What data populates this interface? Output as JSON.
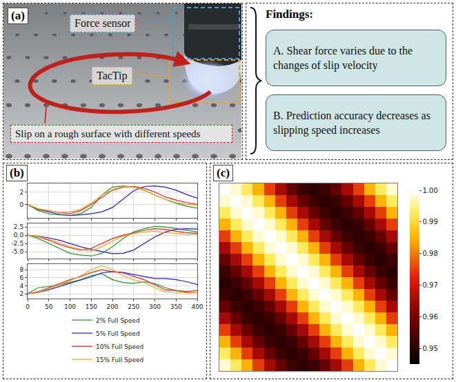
{
  "panel_a": {
    "label": "(a)",
    "force_sensor": "Force sensor",
    "tactip": "TacTip",
    "slip": "Slip on a rough surface with different speeds"
  },
  "findings": {
    "title": "Findings:",
    "items": [
      "A. Shear force varies due to the changes of slip velocity",
      "B. Prediction accuracy decreases as slipping speed increases"
    ]
  },
  "chart_data": [
    {
      "type": "line",
      "label": "(b)",
      "grid": true,
      "tick_labels": "y",
      "x": [
        0,
        25,
        50,
        75,
        100,
        125,
        150,
        175,
        200,
        225,
        250,
        275,
        300,
        325,
        350,
        375,
        400
      ],
      "xlim": [
        0,
        400
      ],
      "xticks": [
        0,
        50,
        100,
        150,
        200,
        250,
        300,
        350,
        400
      ],
      "ylim": [
        -2.2,
        3.4
      ],
      "yticks": [
        0,
        2
      ],
      "series": [
        {
          "name": "2% Full Speed",
          "color": "#1e9a1e",
          "values": [
            0,
            -1.0,
            -1.5,
            -1.7,
            -1.8,
            -1.5,
            -0.5,
            1.5,
            2.8,
            3.0,
            2.8,
            2.3,
            1.5,
            0.8,
            0.2,
            -0.3,
            -0.6
          ]
        },
        {
          "name": "5% Full Speed",
          "color": "#1f1fe0",
          "values": [
            0,
            -0.8,
            -1.2,
            -1.6,
            -1.8,
            -1.7,
            -1.5,
            -1.2,
            -0.5,
            0.8,
            2.2,
            2.9,
            3.0,
            2.8,
            2.3,
            1.6,
            1.0
          ]
        },
        {
          "name": "10% Full Speed",
          "color": "#e8231c",
          "values": [
            0,
            -0.8,
            -1.0,
            -1.3,
            -1.5,
            -1.0,
            0.0,
            1.2,
            2.3,
            2.8,
            2.9,
            2.6,
            2.0,
            1.2,
            0.7,
            0.3,
            0.0
          ]
        },
        {
          "name": "15% Full Speed",
          "color": "#f5a623",
          "values": [
            0,
            -0.7,
            -1.0,
            -1.3,
            -1.2,
            -0.8,
            0.2,
            1.5,
            2.4,
            2.9,
            2.8,
            2.3,
            1.5,
            0.8,
            0.3,
            0.0,
            -0.1
          ]
        }
      ]
    },
    {
      "type": "line",
      "grid": true,
      "tick_labels": "y",
      "x": [
        0,
        25,
        50,
        75,
        100,
        125,
        150,
        175,
        200,
        225,
        250,
        275,
        300,
        325,
        350,
        375,
        400
      ],
      "xlim": [
        0,
        400
      ],
      "xticks": [
        0,
        50,
        100,
        150,
        200,
        250,
        300,
        350,
        400
      ],
      "ylim": [
        -7,
        3.5
      ],
      "yticks": [
        {
          "value": -5,
          "label": "-5.0"
        },
        {
          "value": -2.5,
          "label": "-2.5"
        },
        {
          "value": 0,
          "label": "0.0"
        },
        {
          "value": 2.5,
          "label": "2.5"
        }
      ],
      "series": [
        {
          "name": "2% Full Speed",
          "color": "#1e9a1e",
          "values": [
            0,
            -1.0,
            -2.5,
            -4.0,
            -5.5,
            -6.0,
            -6.3,
            -5.5,
            -3.5,
            -1.0,
            1.0,
            2.0,
            2.7,
            2.5,
            2.0,
            1.5,
            1.0
          ]
        },
        {
          "name": "5% Full Speed",
          "color": "#1f1fe0",
          "values": [
            0,
            -0.3,
            -0.8,
            -1.5,
            -2.5,
            -3.5,
            -4.3,
            -5.0,
            -5.6,
            -5.5,
            -4.5,
            -2.5,
            -0.5,
            1.0,
            1.8,
            2.0,
            1.9
          ]
        },
        {
          "name": "10% Full Speed",
          "color": "#e8231c",
          "values": [
            0,
            -0.5,
            -1.5,
            -2.8,
            -3.8,
            -4.5,
            -4.0,
            -2.5,
            -1.0,
            0.0,
            0.8,
            1.5,
            2.0,
            1.8,
            1.2,
            0.8,
            0.6
          ]
        },
        {
          "name": "15% Full Speed",
          "color": "#f5a623",
          "values": [
            0,
            -0.4,
            -1.2,
            -2.3,
            -3.5,
            -4.3,
            -4.8,
            -3.5,
            -1.8,
            -0.3,
            0.5,
            1.0,
            1.2,
            0.8,
            0.5,
            0.3,
            0.3
          ]
        }
      ]
    },
    {
      "type": "line",
      "grid": true,
      "legend": "bottom",
      "x": [
        0,
        25,
        50,
        75,
        100,
        125,
        150,
        175,
        200,
        225,
        250,
        275,
        300,
        325,
        350,
        375,
        400
      ],
      "xlim": [
        0,
        400
      ],
      "xticks": [
        0,
        50,
        100,
        150,
        200,
        250,
        300,
        350,
        400
      ],
      "ylim": [
        0.8,
        9.4
      ],
      "yticks": [
        2,
        4,
        6,
        8
      ],
      "series": [
        {
          "name": "2% Full Speed",
          "color": "#1e9a1e",
          "values": [
            2.0,
            3.5,
            3.8,
            4.2,
            4.8,
            5.5,
            6.5,
            7.0,
            5.5,
            4.8,
            4.6,
            5.0,
            4.5,
            3.5,
            2.8,
            2.4,
            2.3
          ]
        },
        {
          "name": "5% Full Speed",
          "color": "#1f1fe0",
          "values": [
            2.0,
            2.3,
            3.0,
            3.8,
            4.5,
            5.3,
            6.2,
            7.2,
            7.5,
            7.3,
            6.8,
            6.3,
            5.8,
            5.8,
            5.5,
            5.0,
            4.3
          ]
        },
        {
          "name": "10% Full Speed",
          "color": "#e8231c",
          "values": [
            2.0,
            2.5,
            3.5,
            4.5,
            5.5,
            6.3,
            7.3,
            8.0,
            7.5,
            7.2,
            6.3,
            5.5,
            4.2,
            3.0,
            2.8,
            2.6,
            2.8
          ]
        },
        {
          "name": "15% Full Speed",
          "color": "#f5a623",
          "values": [
            2.0,
            2.3,
            3.3,
            4.3,
            5.2,
            6.5,
            8.0,
            9.0,
            8.0,
            6.5,
            5.5,
            4.8,
            3.5,
            2.5,
            2.3,
            2.2,
            2.3
          ]
        }
      ]
    },
    {
      "type": "heatmap",
      "label": "(c)",
      "tick_labels": false,
      "colorbar_range": [
        0.945,
        1.0
      ],
      "colorbar_ticks": [
        0.95,
        0.96,
        0.97,
        0.98,
        0.99,
        {
          "value": 1,
          "label": "1.00"
        }
      ],
      "cells": [
        [
          1.0,
          0.998,
          0.993,
          0.985,
          0.975,
          0.965,
          0.957,
          0.952,
          0.95,
          0.952,
          0.957,
          0.965,
          0.975,
          0.985,
          0.993,
          0.998
        ],
        [
          0.998,
          1.0,
          0.998,
          0.993,
          0.985,
          0.975,
          0.965,
          0.957,
          0.952,
          0.95,
          0.952,
          0.957,
          0.965,
          0.975,
          0.985,
          0.993
        ],
        [
          0.993,
          0.998,
          1.0,
          0.998,
          0.993,
          0.985,
          0.975,
          0.965,
          0.957,
          0.952,
          0.95,
          0.952,
          0.957,
          0.965,
          0.975,
          0.985
        ],
        [
          0.985,
          0.993,
          0.998,
          1.0,
          0.998,
          0.993,
          0.985,
          0.975,
          0.965,
          0.957,
          0.952,
          0.95,
          0.952,
          0.957,
          0.965,
          0.975
        ],
        [
          0.975,
          0.985,
          0.993,
          0.998,
          1.0,
          0.998,
          0.993,
          0.985,
          0.975,
          0.965,
          0.957,
          0.952,
          0.95,
          0.952,
          0.957,
          0.965
        ],
        [
          0.965,
          0.975,
          0.985,
          0.993,
          0.998,
          1.0,
          0.998,
          0.993,
          0.985,
          0.975,
          0.965,
          0.957,
          0.952,
          0.95,
          0.952,
          0.957
        ],
        [
          0.957,
          0.965,
          0.975,
          0.985,
          0.993,
          0.998,
          1.0,
          0.998,
          0.993,
          0.985,
          0.975,
          0.965,
          0.957,
          0.952,
          0.95,
          0.952
        ],
        [
          0.952,
          0.957,
          0.965,
          0.975,
          0.985,
          0.993,
          0.998,
          1.0,
          0.998,
          0.993,
          0.985,
          0.975,
          0.965,
          0.957,
          0.952,
          0.95
        ],
        [
          0.95,
          0.952,
          0.957,
          0.965,
          0.975,
          0.985,
          0.993,
          0.998,
          1.0,
          0.998,
          0.993,
          0.985,
          0.975,
          0.965,
          0.957,
          0.952
        ],
        [
          0.952,
          0.95,
          0.952,
          0.957,
          0.965,
          0.975,
          0.985,
          0.993,
          0.998,
          1.0,
          0.998,
          0.993,
          0.985,
          0.975,
          0.965,
          0.957
        ],
        [
          0.957,
          0.952,
          0.95,
          0.952,
          0.957,
          0.965,
          0.975,
          0.985,
          0.993,
          0.998,
          1.0,
          0.998,
          0.993,
          0.985,
          0.975,
          0.965
        ],
        [
          0.965,
          0.957,
          0.952,
          0.95,
          0.952,
          0.957,
          0.965,
          0.975,
          0.985,
          0.993,
          0.998,
          1.0,
          0.998,
          0.993,
          0.985,
          0.975
        ],
        [
          0.975,
          0.965,
          0.957,
          0.952,
          0.95,
          0.952,
          0.957,
          0.965,
          0.975,
          0.985,
          0.993,
          0.998,
          1.0,
          0.998,
          0.993,
          0.985
        ],
        [
          0.985,
          0.975,
          0.965,
          0.957,
          0.952,
          0.95,
          0.952,
          0.957,
          0.965,
          0.975,
          0.985,
          0.993,
          0.998,
          1.0,
          0.998,
          0.993
        ],
        [
          0.993,
          0.985,
          0.975,
          0.965,
          0.957,
          0.952,
          0.95,
          0.952,
          0.957,
          0.965,
          0.975,
          0.985,
          0.993,
          0.998,
          1.0,
          0.998
        ],
        [
          0.998,
          0.993,
          0.985,
          0.975,
          0.965,
          0.957,
          0.952,
          0.95,
          0.952,
          0.957,
          0.965,
          0.975,
          0.985,
          0.993,
          0.998,
          1.0
        ]
      ]
    }
  ]
}
